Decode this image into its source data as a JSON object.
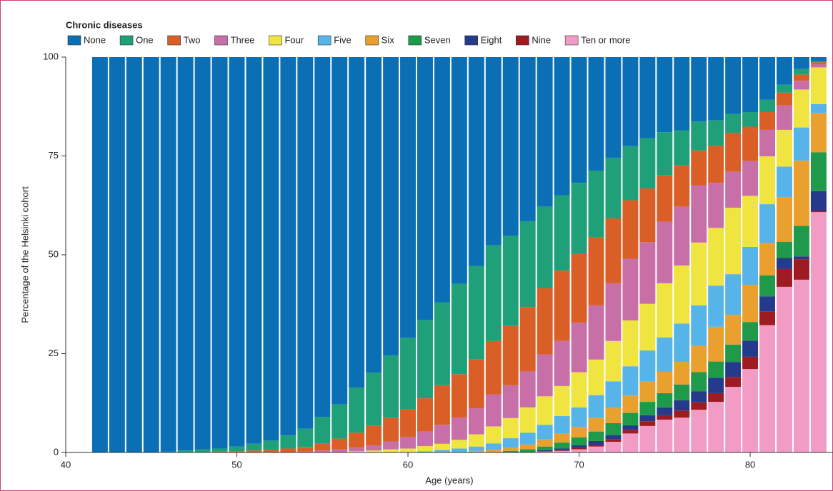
{
  "chart_data": {
    "type": "stacked_bar",
    "legend_title": "Chronic diseases",
    "xlabel": "Age (years)",
    "ylabel": "Percentage of the Helsinki cohort",
    "x": [
      42,
      43,
      44,
      45,
      46,
      47,
      48,
      49,
      50,
      51,
      52,
      53,
      54,
      55,
      56,
      57,
      58,
      59,
      60,
      61,
      62,
      63,
      64,
      65,
      66,
      67,
      68,
      69,
      70,
      71,
      72,
      73,
      74,
      75,
      76,
      77,
      78,
      79,
      80,
      81,
      82,
      83,
      84
    ],
    "xlim": [
      40,
      84.84
    ],
    "xticks": [
      40,
      50,
      60,
      70,
      80
    ],
    "ylim": [
      0,
      100
    ],
    "yticks": [
      0,
      25,
      50,
      75,
      100
    ],
    "grid": false,
    "legend": "top",
    "series": [
      {
        "name": "None",
        "color": "#0a6fb4",
        "values": [
          100,
          100,
          100,
          100,
          99.8,
          99.5,
          99.2,
          99,
          98.5,
          97.8,
          97,
          95.7,
          94,
          91,
          87.8,
          83.6,
          79.8,
          75.5,
          71,
          66.5,
          62,
          57.3,
          52.8,
          47.6,
          45.2,
          41.5,
          37.8,
          35,
          31.8,
          28.7,
          25.5,
          22.5,
          20.5,
          19,
          18.5,
          16.3,
          16,
          14.4,
          13.9,
          10.8,
          7,
          3,
          1
        ]
      },
      {
        "name": "One",
        "color": "#1fa078",
        "values": [
          0,
          0,
          0,
          0,
          0.2,
          0.5,
          0.7,
          0.8,
          1.2,
          1.7,
          2.3,
          3.3,
          4.6,
          6.8,
          8.7,
          11.4,
          13.4,
          15.7,
          18,
          19.8,
          21,
          22.9,
          23.7,
          24.2,
          22.8,
          21.7,
          20.6,
          19,
          18,
          16.8,
          15.3,
          13.7,
          12.7,
          10.8,
          8.9,
          7.3,
          6.4,
          4.8,
          3.7,
          3.1,
          2,
          1.4,
          0.3
        ]
      },
      {
        "name": "Two",
        "color": "#d95f27",
        "values": [
          0,
          0,
          0,
          0,
          0,
          0,
          0.1,
          0.2,
          0.3,
          0.5,
          0.7,
          1,
          1.2,
          1.7,
          2.7,
          3.8,
          5,
          6,
          7.1,
          8.4,
          10,
          11,
          12.3,
          13.5,
          15,
          16.3,
          16.8,
          17.8,
          17.4,
          17.3,
          16.4,
          14.8,
          13.6,
          11.8,
          10.4,
          8.8,
          9.4,
          9.8,
          8.7,
          4.5,
          3.2,
          1.6,
          0.5
        ]
      },
      {
        "name": "Three",
        "color": "#c96fa8",
        "values": [
          0,
          0,
          0,
          0,
          0,
          0,
          0,
          0,
          0,
          0,
          0,
          0,
          0.2,
          0.5,
          0.8,
          0.9,
          1.3,
          2,
          2.9,
          3.7,
          4.8,
          5.6,
          6.6,
          8.1,
          8.3,
          9.1,
          10.6,
          11.4,
          12.5,
          13.7,
          14.6,
          15.6,
          15.6,
          15.6,
          14.9,
          14.5,
          11.4,
          9.1,
          8.8,
          6.7,
          6.2,
          2.2,
          0.8
        ]
      },
      {
        "name": "Four",
        "color": "#efe440",
        "values": [
          0,
          0,
          0,
          0,
          0,
          0,
          0,
          0,
          0,
          0,
          0,
          0,
          0,
          0,
          0,
          0.3,
          0.5,
          0.8,
          1,
          1.3,
          1.6,
          2.2,
          3.1,
          4.3,
          5.1,
          6.4,
          7.2,
          7.6,
          8.9,
          9,
          10.2,
          11.6,
          11.8,
          13.7,
          14.7,
          15.9,
          14.6,
          16.8,
          12.9,
          12.1,
          9.3,
          9.6,
          9.3
        ]
      },
      {
        "name": "Five",
        "color": "#56b4e9",
        "values": [
          0,
          0,
          0,
          0,
          0,
          0,
          0,
          0,
          0,
          0,
          0,
          0,
          0,
          0,
          0,
          0,
          0,
          0,
          0,
          0.3,
          0.6,
          1,
          1.1,
          1.6,
          2.4,
          3,
          3.7,
          4.4,
          4.9,
          5.7,
          6.7,
          7.4,
          7.9,
          8.7,
          9.7,
          10.2,
          10.4,
          10.3,
          9.6,
          9.8,
          7.7,
          8.4,
          2.3
        ]
      },
      {
        "name": "Six",
        "color": "#e9a02e",
        "values": [
          0,
          0,
          0,
          0,
          0,
          0,
          0,
          0,
          0,
          0,
          0,
          0,
          0,
          0,
          0,
          0,
          0,
          0,
          0,
          0,
          0,
          0,
          0.4,
          0.7,
          0.8,
          1.2,
          1.8,
          2.3,
          2.7,
          3.5,
          3.9,
          4.4,
          5.1,
          5.4,
          5.7,
          6.7,
          8.8,
          7.5,
          9.4,
          8.2,
          11.3,
          16.5,
          9.9
        ]
      },
      {
        "name": "Seven",
        "color": "#1e9a4a",
        "values": [
          0,
          0,
          0,
          0,
          0,
          0,
          0,
          0,
          0,
          0,
          0,
          0,
          0,
          0,
          0,
          0,
          0,
          0,
          0,
          0,
          0,
          0,
          0,
          0,
          0.4,
          0.8,
          0.9,
          1.5,
          2,
          2.4,
          3,
          3.1,
          3.4,
          3.6,
          4,
          4.8,
          4.1,
          4.4,
          4.7,
          5.3,
          4.1,
          7.7,
          9.8
        ]
      },
      {
        "name": "Eight",
        "color": "#263a8c",
        "values": [
          0,
          0,
          0,
          0,
          0,
          0,
          0,
          0,
          0,
          0,
          0,
          0,
          0,
          0,
          0,
          0,
          0,
          0,
          0,
          0,
          0,
          0,
          0,
          0,
          0,
          0,
          0.3,
          0.4,
          0.7,
          1,
          1.1,
          1.2,
          1.5,
          2,
          2.6,
          2.8,
          3.9,
          3.8,
          4.1,
          3.9,
          2.8,
          0.7,
          5
        ]
      },
      {
        "name": "Nine",
        "color": "#9e1b22",
        "values": [
          0,
          0,
          0,
          0,
          0,
          0,
          0,
          0,
          0,
          0,
          0,
          0,
          0,
          0,
          0,
          0,
          0,
          0,
          0,
          0,
          0,
          0,
          0,
          0,
          0,
          0,
          0.1,
          0.2,
          0.3,
          0.4,
          0.6,
          0.9,
          1.2,
          1.1,
          1.8,
          1.9,
          2.2,
          2.5,
          3.1,
          3.4,
          4.5,
          5.2,
          0.3
        ]
      },
      {
        "name": "Ten or more",
        "color": "#f29cc5",
        "values": [
          0,
          0,
          0,
          0,
          0,
          0,
          0,
          0,
          0,
          0,
          0,
          0,
          0,
          0,
          0,
          0,
          0,
          0,
          0,
          0,
          0,
          0,
          0,
          0,
          0,
          0,
          0.2,
          0.4,
          0.8,
          1.5,
          2.7,
          4.8,
          6.7,
          8.3,
          8.8,
          10.8,
          12.8,
          16.6,
          21.1,
          32.2,
          41.9,
          43.7,
          60.8
        ]
      }
    ]
  }
}
